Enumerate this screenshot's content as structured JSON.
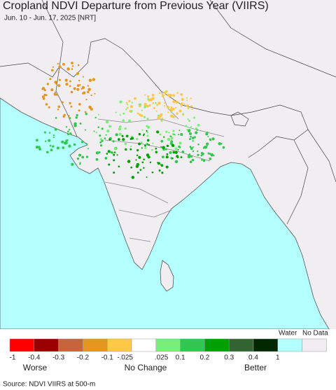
{
  "header": {
    "title": "Cropland NDVI Departure from Previous Year (VIIRS)",
    "subtitle": "Jun. 10 - Jun. 17, 2025 [NRT]"
  },
  "legend": {
    "top_labels": [
      "Water",
      "No Data"
    ],
    "colors": [
      "#ff0000",
      "#990000",
      "#c8643c",
      "#e6961e",
      "#ffc846",
      "#ffffff",
      "#78f078",
      "#32c850",
      "#00a000",
      "#326432",
      "#002800",
      "#b4ffff",
      "#f0eef0"
    ],
    "tick_labels": [
      "-1",
      "-0.4",
      "-0.3",
      "-0.2",
      "-0.1",
      "-.025",
      ".025",
      "0.1",
      "0.2",
      "0.3",
      "0.4",
      "1"
    ],
    "captions": [
      "Worse",
      "No Change",
      "Better"
    ]
  },
  "footer": {
    "source": "Source: NDVI VIIRS at 500-m"
  }
}
